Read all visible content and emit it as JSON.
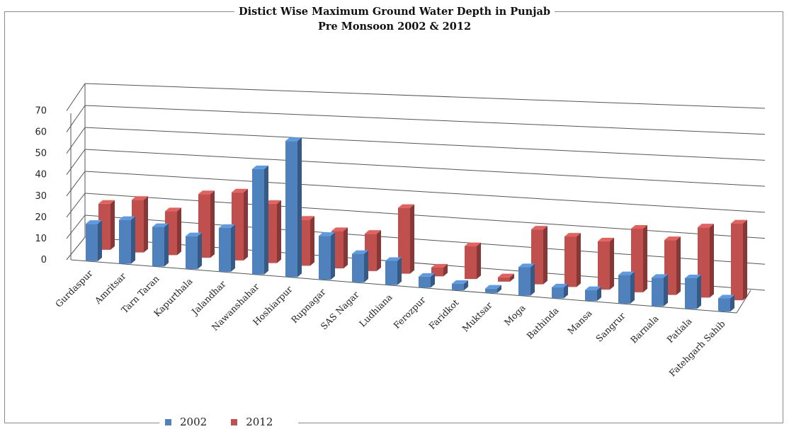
{
  "chart_data": {
    "type": "bar",
    "title": "Distict Wise Maximum Ground Water Depth in Punjab",
    "subtitle": "Pre Monsoon  2002 & 2012",
    "categories": [
      "Gurdaspur",
      "Amritsar",
      "Tarn Taran",
      "Kapurthala",
      "Jalandhar",
      "Nawanshahar",
      "Hoshiarpur",
      "Rupnagar",
      "SAS Nagar",
      "Ludhiana",
      "Ferozpur",
      "Faridkot",
      "Muktsar",
      "Moga",
      "Bathinda",
      "Mansa",
      "Sangrur",
      "Barnala",
      "Patiala",
      "Fatehgarh Sahib"
    ],
    "series": [
      {
        "name": "2002",
        "color": "#4f81bd",
        "values": [
          17,
          20,
          18,
          15,
          20,
          48,
          62,
          20,
          13,
          11,
          5,
          3,
          2,
          13,
          5,
          5,
          13,
          13,
          14,
          6
        ]
      },
      {
        "name": "2012",
        "color": "#c0504d",
        "values": [
          21,
          24,
          20,
          29,
          31,
          27,
          21,
          17,
          17,
          30,
          4,
          15,
          2,
          25,
          23,
          22,
          29,
          25,
          32,
          35
        ]
      }
    ],
    "ylim": [
      0,
      70
    ],
    "yticks": [
      0,
      10,
      20,
      30,
      40,
      50,
      60,
      70
    ],
    "grid": true,
    "legend_position": "bottom-left"
  }
}
